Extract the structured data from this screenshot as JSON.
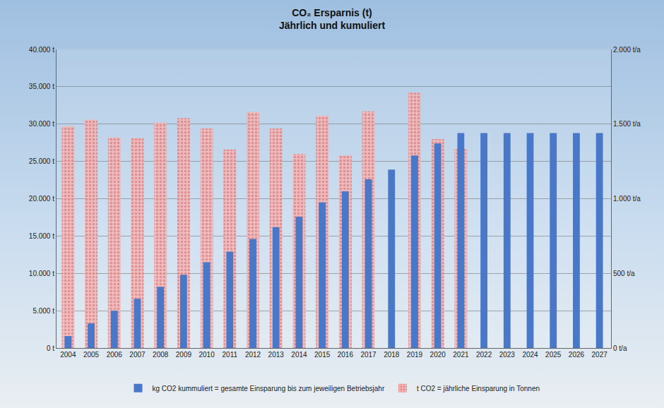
{
  "chart_data": {
    "type": "bar",
    "title": "CO₂ Ersparnis (t)",
    "subtitle": "Jährlich und kumuliert",
    "categories": [
      "2004",
      "2005",
      "2006",
      "2007",
      "2008",
      "2009",
      "2010",
      "2011",
      "2012",
      "2013",
      "2014",
      "2015",
      "2016",
      "2017",
      "2018",
      "2019",
      "2020",
      "2021",
      "2022",
      "2023",
      "2024",
      "2025",
      "2026",
      "2027"
    ],
    "series": [
      {
        "name": "kg CO2 kummuliert = gesamte Einsparung bis zum jeweiligen Betriebsjahr",
        "color": "#4a78c8",
        "values": [
          1600,
          3300,
          5000,
          6600,
          8200,
          9800,
          11500,
          12900,
          14600,
          16200,
          17600,
          19500,
          21000,
          22600,
          23900,
          25800,
          27400,
          28800,
          28800,
          28800,
          28800,
          28800,
          28800,
          28800
        ]
      },
      {
        "name": "t CO2 = jährliche Einsparung in Tonnen",
        "color": "#f3b5b5",
        "axis": "y2",
        "values": [
          1485,
          1530,
          1410,
          1405,
          1510,
          1540,
          1470,
          1330,
          1580,
          1470,
          1300,
          1555,
          1290,
          1585,
          null,
          1710,
          1400,
          1335,
          null,
          null,
          null,
          null,
          null,
          null
        ]
      }
    ],
    "ylim": [
      0,
      40000
    ],
    "yticks": [
      {
        "value": 0,
        "label": "0 t"
      },
      {
        "value": 5000,
        "label": "5.000 t"
      },
      {
        "value": 10000,
        "label": "10.000 t"
      },
      {
        "value": 15000,
        "label": "15.000 t"
      },
      {
        "value": 20000,
        "label": "20.000 t"
      },
      {
        "value": 25000,
        "label": "25.000 t"
      },
      {
        "value": 30000,
        "label": "30.000 t"
      },
      {
        "value": 35000,
        "label": "35.000 t"
      },
      {
        "value": 40000,
        "label": "40.000 t"
      }
    ],
    "y2lim": [
      0,
      2000
    ],
    "y2ticks": [
      {
        "value": 0,
        "label": "0 t/a"
      },
      {
        "value": 500,
        "label": "500 t/a"
      },
      {
        "value": 1000,
        "label": "1.000 t/a"
      },
      {
        "value": 1500,
        "label": "1.500 t/a"
      },
      {
        "value": 2000,
        "label": "2.000 t/a"
      }
    ],
    "grid": true,
    "legend": "bottom"
  }
}
